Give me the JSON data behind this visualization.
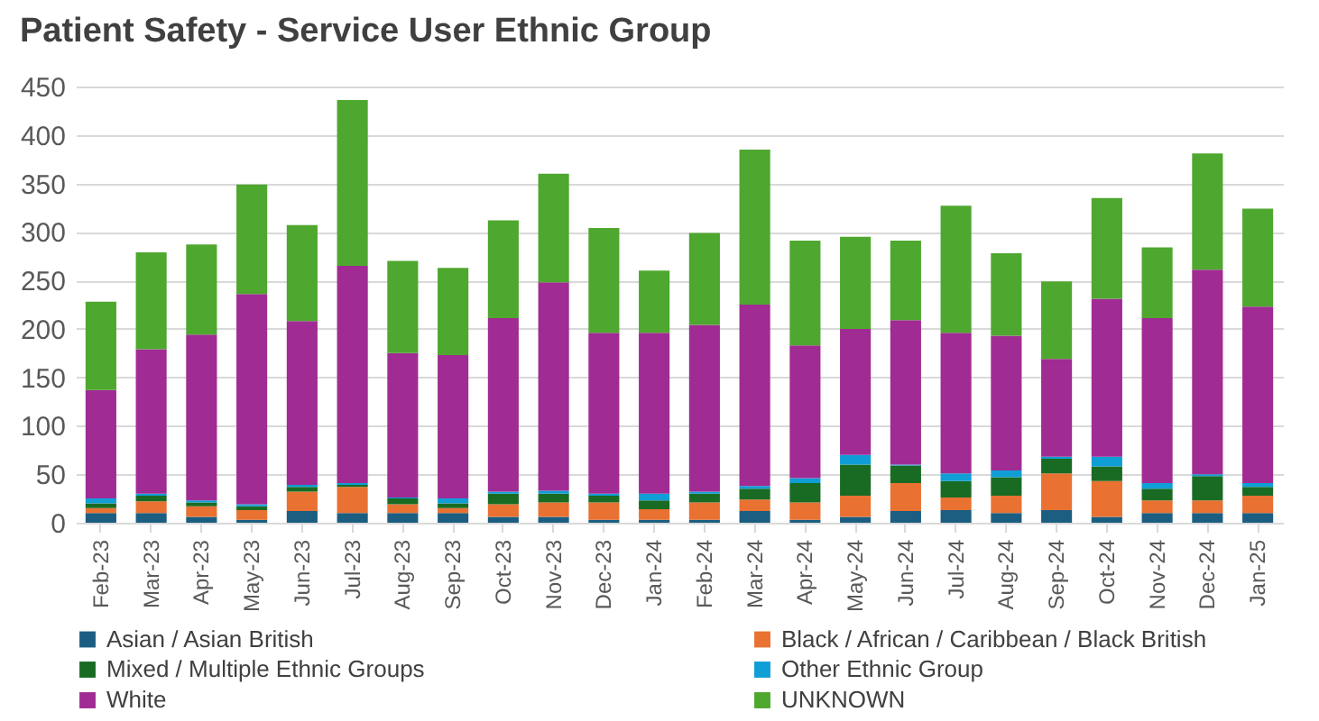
{
  "chart_data": {
    "type": "bar",
    "title": "Patient Safety - Service User Ethnic Group",
    "stacked": true,
    "categories": [
      "Feb-23",
      "Mar-23",
      "Apr-23",
      "May-23",
      "Jun-23",
      "Jul-23",
      "Aug-23",
      "Sep-23",
      "Oct-23",
      "Nov-23",
      "Dec-23",
      "Jan-24",
      "Feb-24",
      "Mar-24",
      "Apr-24",
      "May-24",
      "Jun-24",
      "Jul-24",
      "Aug-24",
      "Sep-24",
      "Oct-24",
      "Nov-24",
      "Dec-24",
      "Jan-25"
    ],
    "series": [
      {
        "name": "Asian / Asian British",
        "color": "#1b5e82",
        "values": [
          10,
          10,
          6,
          3,
          12,
          10,
          10,
          10,
          6,
          6,
          3,
          3,
          3,
          12,
          3,
          6,
          12,
          13,
          10,
          13,
          6,
          10,
          10,
          10
        ]
      },
      {
        "name": "Black / African / Caribbean / Black British",
        "color": "#e97132",
        "values": [
          5,
          12,
          11,
          10,
          20,
          27,
          9,
          5,
          13,
          15,
          18,
          11,
          18,
          12,
          18,
          22,
          29,
          13,
          18,
          38,
          37,
          13,
          13,
          18
        ]
      },
      {
        "name": "Mixed / Multiple Ethnic Groups",
        "color": "#196b24",
        "values": [
          5,
          6,
          4,
          4,
          5,
          2,
          6,
          5,
          11,
          9,
          7,
          9,
          9,
          11,
          20,
          32,
          18,
          17,
          19,
          15,
          15,
          12,
          25,
          9
        ]
      },
      {
        "name": "Other Ethnic Group",
        "color": "#0f9ed5",
        "values": [
          5,
          2,
          2,
          2,
          2,
          2,
          1,
          5,
          2,
          3,
          2,
          7,
          2,
          3,
          5,
          10,
          1,
          8,
          7,
          2,
          10,
          6,
          2,
          4
        ]
      },
      {
        "name": "White",
        "color": "#a02b93",
        "values": [
          112,
          149,
          171,
          217,
          169,
          224,
          149,
          148,
          179,
          215,
          166,
          166,
          172,
          187,
          137,
          130,
          149,
          145,
          139,
          101,
          163,
          170,
          211,
          182
        ]
      },
      {
        "name": "UNKNOWN",
        "color": "#4ea72e",
        "values": [
          91,
          100,
          93,
          113,
          99,
          171,
          95,
          90,
          101,
          112,
          108,
          64,
          95,
          160,
          108,
          95,
          82,
          131,
          85,
          80,
          104,
          73,
          120,
          101
        ]
      }
    ],
    "ylim": [
      0,
      450
    ],
    "yticks": [
      0,
      50,
      100,
      150,
      200,
      250,
      300,
      350,
      400,
      450
    ],
    "grid": "y",
    "legend": "bottom"
  }
}
